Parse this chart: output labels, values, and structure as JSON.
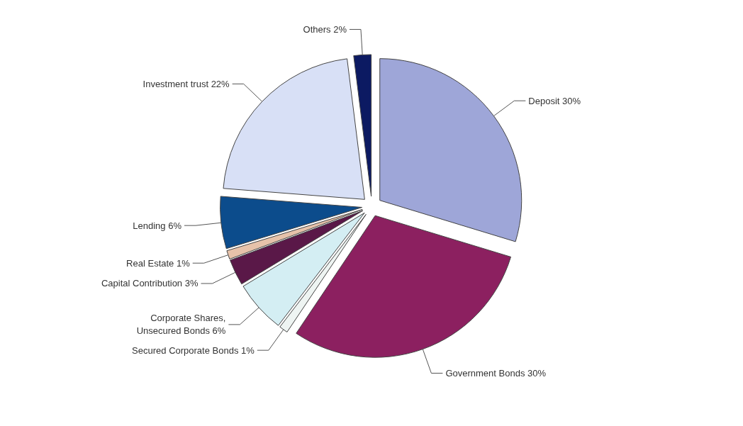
{
  "chart_data": {
    "type": "pie",
    "categories": [
      "Deposit",
      "Government Bonds",
      "Secured Corporate Bonds",
      "Corporate Shares,\nUnsecured Bonds",
      "Capital Contribution",
      "Real Estate",
      "Lending",
      "Investment trust",
      "Others"
    ],
    "values": [
      30,
      30,
      1,
      6,
      3,
      1,
      6,
      22,
      2
    ],
    "value_labels": [
      "30%",
      "30%",
      "1%",
      "6%",
      "3%",
      "1%",
      "6%",
      "22%",
      "2%"
    ],
    "colors": [
      "#9ea6d8",
      "#8c2060",
      "#eef4f2",
      "#d4eef3",
      "#5a1848",
      "#e6c2aa",
      "#0c4c8c",
      "#d8e0f6",
      "#0c1a62"
    ],
    "legend": false
  }
}
